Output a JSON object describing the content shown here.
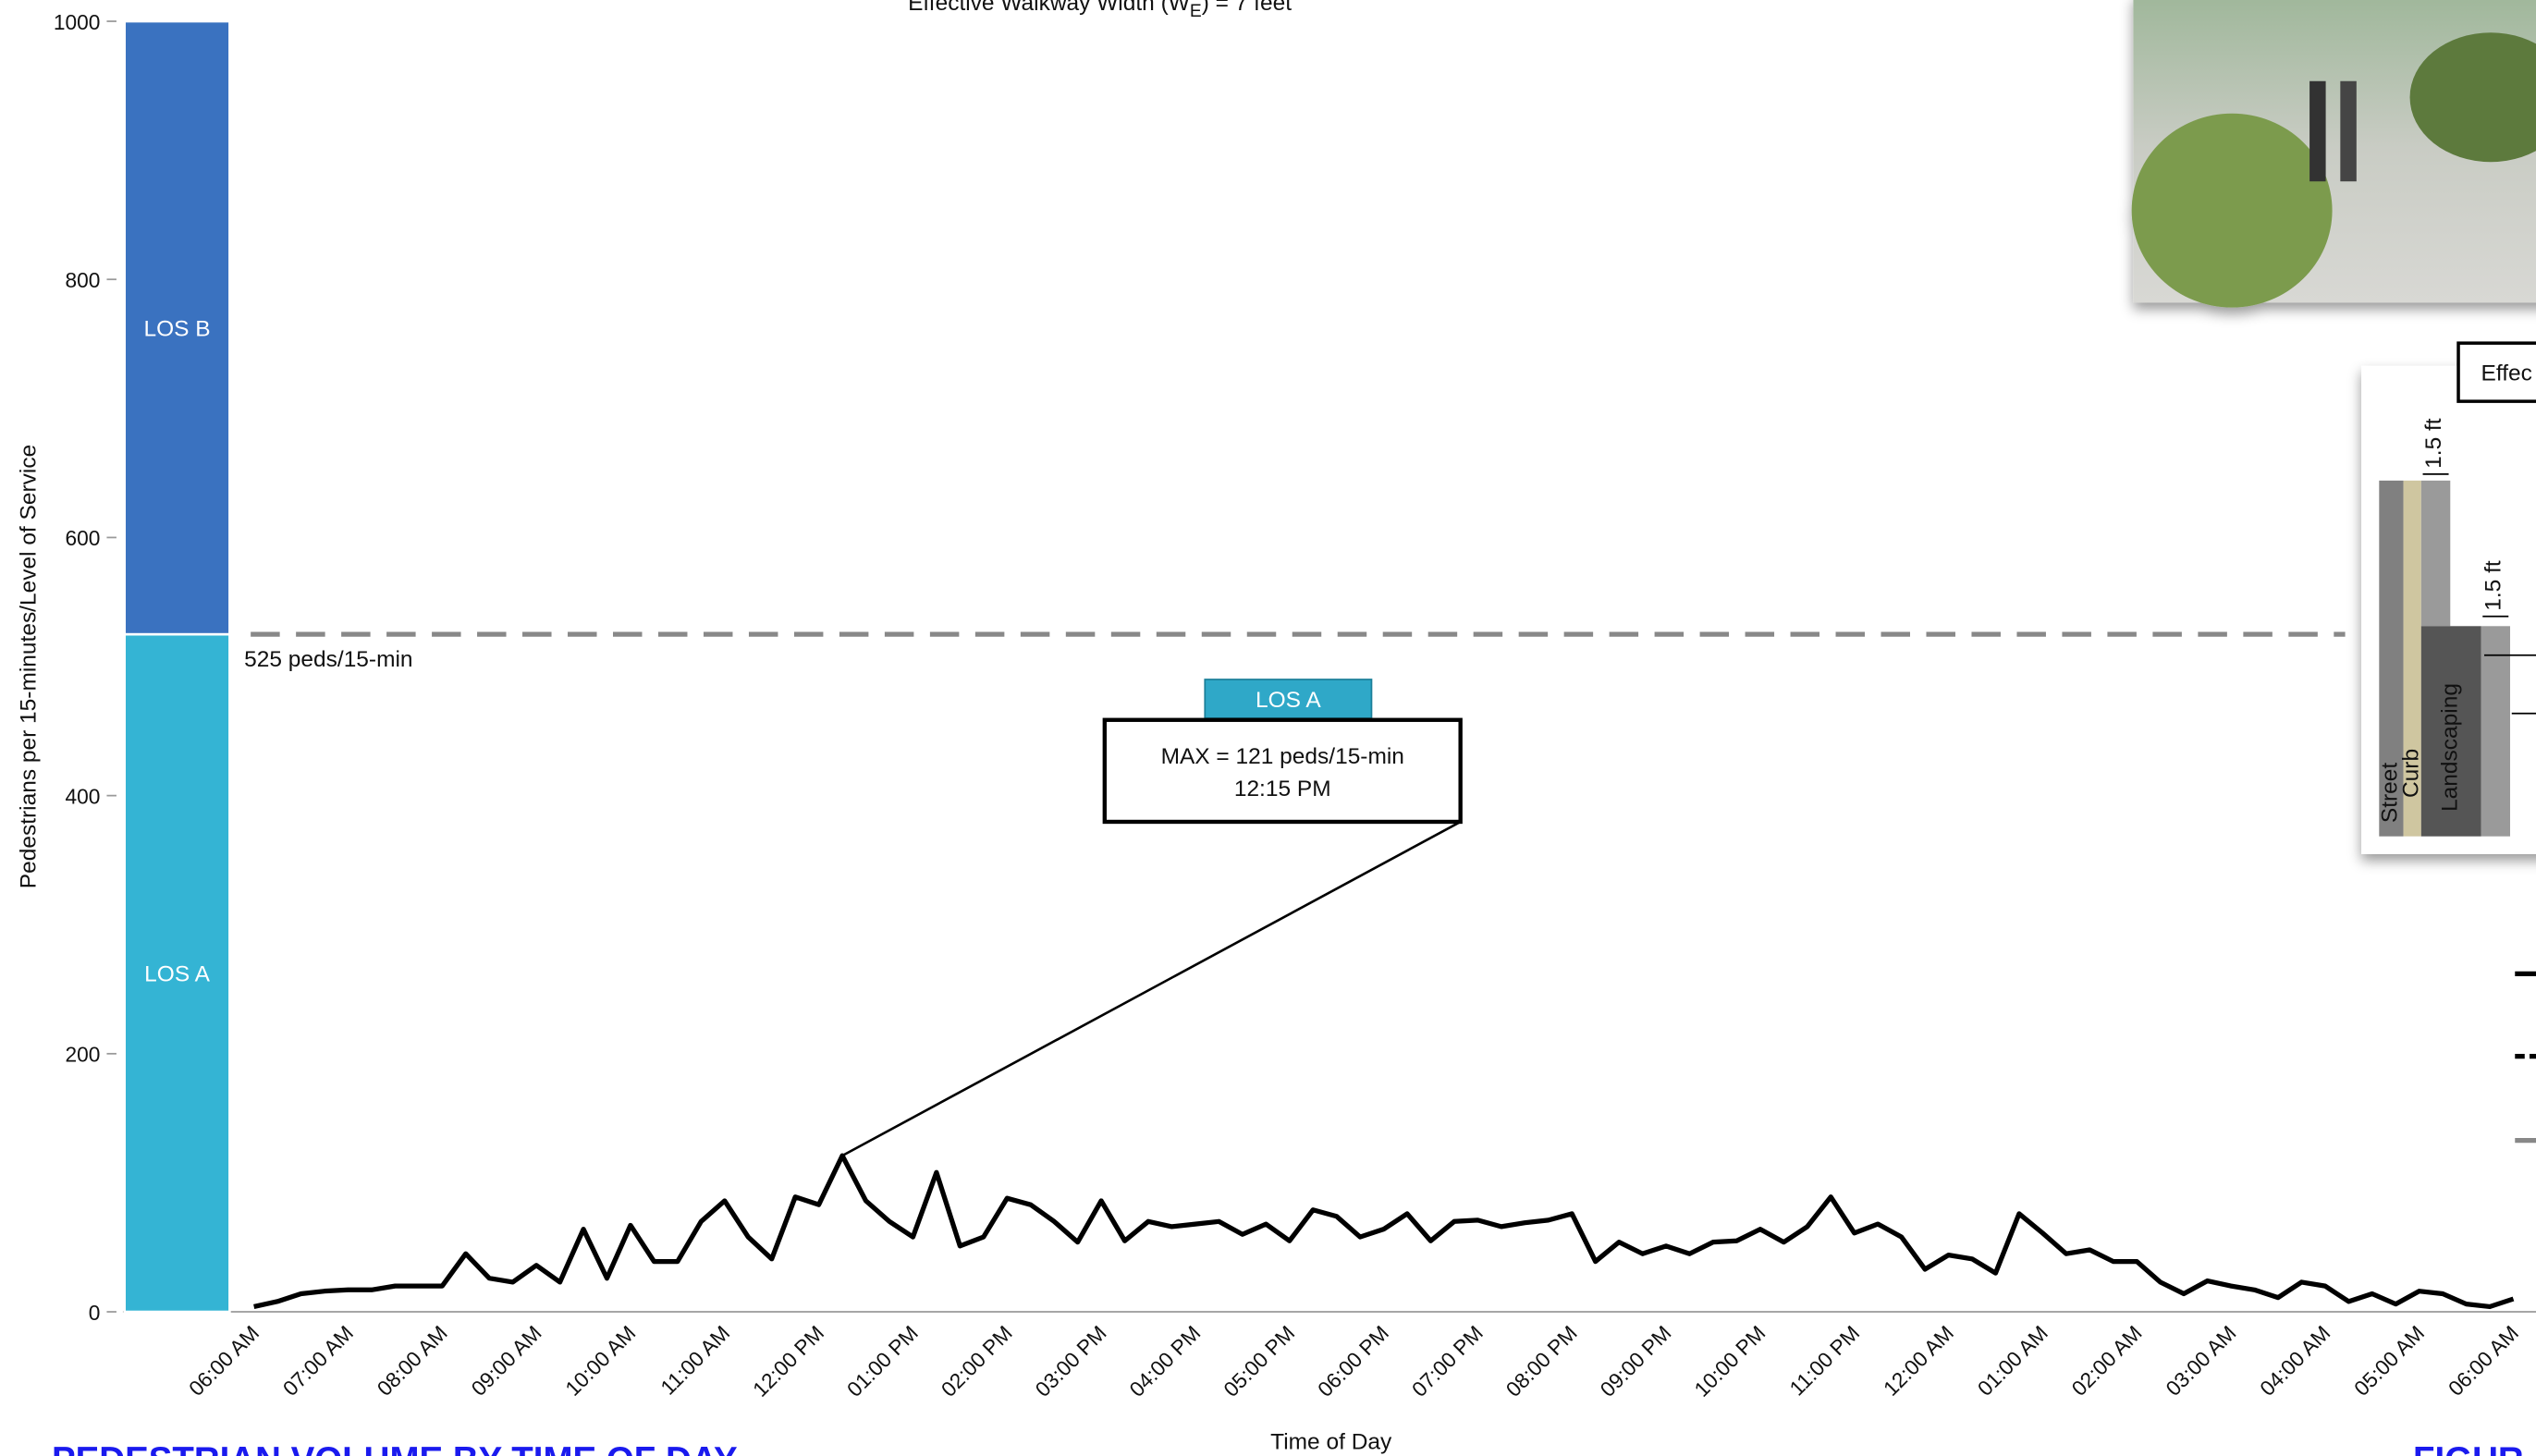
{
  "chart_data": {
    "type": "line",
    "title": {
      "text": "Effective Walkway Width (W",
      "sub": "E",
      "tail": ") = 7 feet"
    },
    "y_label": "Pedestrians per 15-minutes/Level of Service",
    "x_label": "Time of Day",
    "categories": [
      "06:00 AM",
      null,
      null,
      null,
      "07:00 AM",
      null,
      null,
      null,
      "08:00 AM",
      null,
      null,
      null,
      "09:00 AM",
      null,
      null,
      null,
      "10:00 AM",
      null,
      null,
      null,
      "11:00 AM",
      null,
      null,
      null,
      "12:00 PM",
      null,
      null,
      null,
      "01:00 PM",
      null,
      null,
      null,
      "02:00 PM",
      null,
      null,
      null,
      "03:00 PM",
      null,
      null,
      null,
      "04:00 PM",
      null,
      null,
      null,
      "05:00 PM",
      null,
      null,
      null,
      "06:00 PM",
      null,
      null,
      null,
      "07:00 PM",
      null,
      null,
      null,
      "08:00 PM",
      null,
      null,
      null,
      "09:00 PM",
      null,
      null,
      null,
      "10:00 PM",
      null,
      null,
      null,
      "11:00 PM",
      null,
      null,
      null,
      "12:00 AM",
      null,
      null,
      null,
      "01:00 AM",
      null,
      null,
      null,
      "02:00 AM",
      null,
      null,
      null,
      "03:00 AM",
      null,
      null,
      null,
      "04:00 AM",
      null,
      null,
      null,
      "05:00 AM",
      null,
      null,
      null,
      "06:00 AM"
    ],
    "values": [
      4,
      8,
      14,
      16,
      17,
      17,
      20,
      20,
      20,
      45,
      26,
      23,
      36,
      23,
      64,
      26,
      67,
      39,
      39,
      70,
      86,
      58,
      41,
      89,
      83,
      121,
      86,
      70,
      58,
      108,
      51,
      58,
      88,
      83,
      70,
      54,
      86,
      55,
      70,
      66,
      68,
      70,
      60,
      68,
      55,
      79,
      74,
      58,
      64,
      76,
      55,
      70,
      71,
      66,
      69,
      71,
      76,
      39,
      54,
      45,
      51,
      45,
      54,
      55,
      64,
      54,
      66,
      89,
      61,
      68,
      58,
      33,
      44,
      41,
      30,
      76,
      61,
      45,
      48,
      39,
      39,
      23,
      14,
      24,
      20,
      17,
      11,
      23,
      20,
      8,
      14,
      6,
      16,
      14,
      6,
      4,
      10
    ],
    "color": "#000000",
    "ylim": [
      0,
      1000
    ],
    "yticks": [
      0,
      200,
      400,
      600,
      800,
      1000
    ],
    "los_bands": [
      {
        "label": "LOS A",
        "from": 0,
        "to": 525,
        "color": "#34b4d4"
      },
      {
        "label": "LOS B",
        "from": 525,
        "to": 1000,
        "color": "#3a72c0"
      }
    ],
    "threshold": {
      "value": 525,
      "label": "525 peds/15-min",
      "color": "#888888"
    },
    "annotation": {
      "badge": "LOS A",
      "lines": [
        "MAX = 121 peds/15-min",
        "12:15 PM"
      ]
    }
  },
  "footer": {
    "left": "PEDESTRIAN VOLUME BY TIME OF DAY",
    "right": "FIGUR"
  },
  "diagram": {
    "title": "Effec",
    "street": "Street",
    "curb": "Curb",
    "landscaping": "Landscaping",
    "dim_top": "1.5 ft",
    "dim_mid": "1.5 ft"
  }
}
